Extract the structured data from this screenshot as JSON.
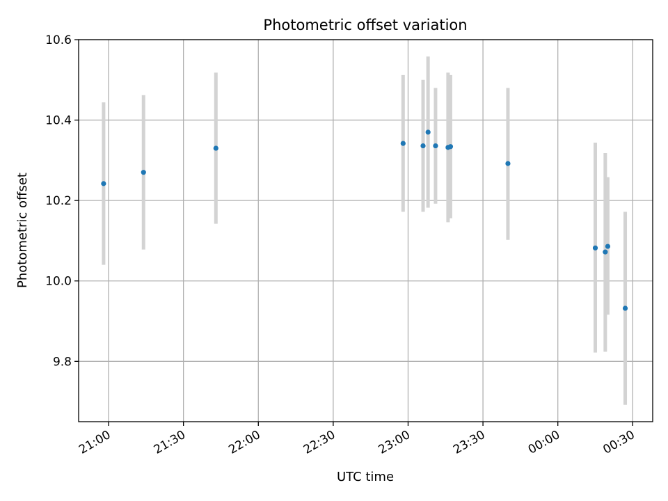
{
  "chart_data": {
    "type": "scatter",
    "title": "Photometric offset variation",
    "xlabel": "UTC time",
    "ylabel": "Photometric offset",
    "x_axis": "time",
    "x_range": [
      "20:48",
      "24:38"
    ],
    "ylim": [
      9.65,
      10.6
    ],
    "x_ticks": [
      {
        "label": "21:00",
        "value": "21:00"
      },
      {
        "label": "21:30",
        "value": "21:30"
      },
      {
        "label": "22:00",
        "value": "22:00"
      },
      {
        "label": "22:30",
        "value": "22:30"
      },
      {
        "label": "23:00",
        "value": "23:00"
      },
      {
        "label": "23:30",
        "value": "23:30"
      },
      {
        "label": "00:00",
        "value": "24:00"
      },
      {
        "label": "00:30",
        "value": "24:30"
      }
    ],
    "y_ticks": [
      {
        "label": "9.8",
        "value": 9.8
      },
      {
        "label": "10.0",
        "value": 10.0
      },
      {
        "label": "10.2",
        "value": 10.2
      },
      {
        "label": "10.4",
        "value": 10.4
      },
      {
        "label": "10.6",
        "value": 10.6
      }
    ],
    "grid": true,
    "point_color": "#1f77b4",
    "errorbar_color": "#d3d3d3",
    "points": [
      {
        "time": "20:58",
        "y": 10.242,
        "ylow": 10.04,
        "yhigh": 10.444
      },
      {
        "time": "21:14",
        "y": 10.27,
        "ylow": 10.078,
        "yhigh": 10.462
      },
      {
        "time": "21:43",
        "y": 10.33,
        "ylow": 10.142,
        "yhigh": 10.518
      },
      {
        "time": "22:58",
        "y": 10.342,
        "ylow": 10.172,
        "yhigh": 10.512
      },
      {
        "time": "23:06",
        "y": 10.336,
        "ylow": 10.172,
        "yhigh": 10.5
      },
      {
        "time": "23:08",
        "y": 10.37,
        "ylow": 10.182,
        "yhigh": 10.558
      },
      {
        "time": "23:11",
        "y": 10.336,
        "ylow": 10.192,
        "yhigh": 10.48
      },
      {
        "time": "23:16",
        "y": 10.332,
        "ylow": 10.146,
        "yhigh": 10.518
      },
      {
        "time": "23:17",
        "y": 10.334,
        "ylow": 10.156,
        "yhigh": 10.512
      },
      {
        "time": "23:40",
        "y": 10.292,
        "ylow": 10.102,
        "yhigh": 10.48
      },
      {
        "time": "24:15",
        "y": 10.082,
        "ylow": 9.822,
        "yhigh": 10.344
      },
      {
        "time": "24:19",
        "y": 10.072,
        "ylow": 9.824,
        "yhigh": 10.318
      },
      {
        "time": "24:20",
        "y": 10.086,
        "ylow": 9.916,
        "yhigh": 10.258
      },
      {
        "time": "24:27",
        "y": 9.932,
        "ylow": 9.692,
        "yhigh": 10.172
      }
    ]
  }
}
